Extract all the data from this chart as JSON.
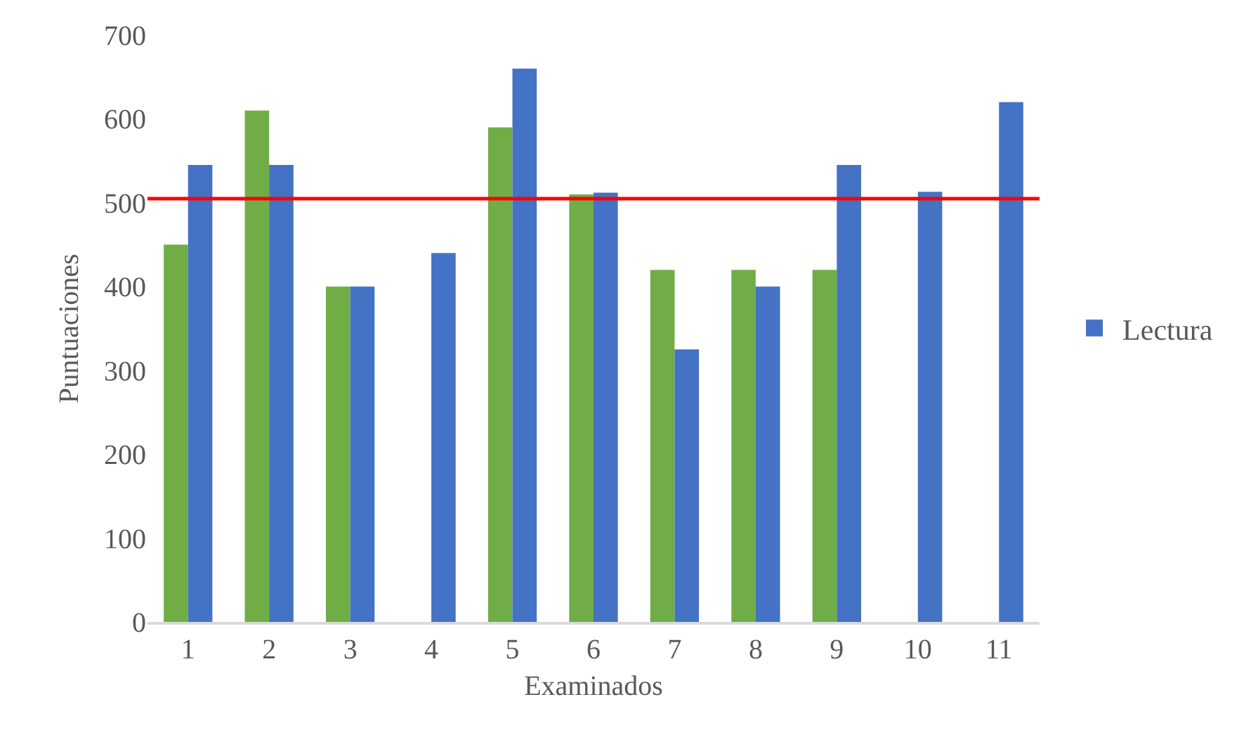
{
  "chart_data": {
    "type": "bar",
    "xlabel": "Examinados",
    "ylabel": "Puntuaciones",
    "categories": [
      "1",
      "2",
      "3",
      "4",
      "5",
      "6",
      "7",
      "8",
      "9",
      "10",
      "11"
    ],
    "series": [
      {
        "color": "#70ad47",
        "values": [
          450,
          610,
          400,
          null,
          590,
          510,
          420,
          420,
          420,
          null,
          null
        ]
      },
      {
        "name": "Lectura",
        "color": "#4472c4",
        "values": [
          545,
          545,
          400,
          440,
          660,
          512,
          325,
          400,
          545,
          513,
          620
        ]
      }
    ],
    "ylim": [
      0,
      700
    ],
    "yticks": [
      0,
      100,
      200,
      300,
      400,
      500,
      600,
      700
    ],
    "ref_lines": [
      {
        "axis": "y",
        "value": 505,
        "color": "#ff0000"
      }
    ],
    "legend": "right"
  }
}
